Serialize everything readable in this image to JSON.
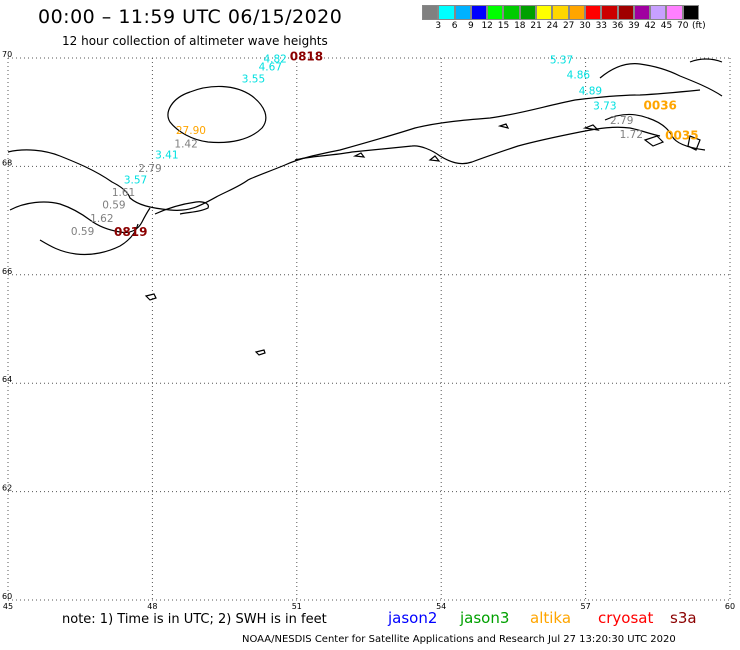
{
  "header": {
    "title": "00:00 – 11:59 UTC 06/15/2020",
    "subtitle": "12 hour collection of altimeter wave heights"
  },
  "colorbar": {
    "colors": [
      "#808080",
      "#00ffff",
      "#00b2ff",
      "#0000ff",
      "#00ff00",
      "#00cc00",
      "#00a000",
      "#ffff00",
      "#ffd700",
      "#ffa500",
      "#ff0000",
      "#cc0000",
      "#a00000",
      "#a000a0",
      "#c8a0ff",
      "#ff80ff",
      "#000000"
    ],
    "labels": [
      "3",
      "6",
      "9",
      "12",
      "15",
      "18",
      "21",
      "24",
      "27",
      "30",
      "33",
      "36",
      "39",
      "42",
      "45",
      "70"
    ],
    "unit": "(ft)"
  },
  "axes": {
    "lon_ticks": [
      {
        "v": 45,
        "t": "45"
      },
      {
        "v": 48,
        "t": "48"
      },
      {
        "v": 51,
        "t": "51"
      },
      {
        "v": 54,
        "t": "54"
      },
      {
        "v": 57,
        "t": "57"
      },
      {
        "v": 60,
        "t": "60"
      }
    ],
    "lat_ticks": [
      {
        "v": 60,
        "t": "60"
      },
      {
        "v": 62,
        "t": "62"
      },
      {
        "v": 64,
        "t": "64"
      },
      {
        "v": 66,
        "t": "66"
      },
      {
        "v": 68,
        "t": "68"
      },
      {
        "v": 70,
        "t": "70"
      }
    ]
  },
  "map_labels": [
    {
      "text": "4.82",
      "lon": 50.55,
      "lat": 69.92,
      "color": "#00e0e0"
    },
    {
      "text": "4.67",
      "lon": 50.45,
      "lat": 69.77,
      "color": "#00e0e0"
    },
    {
      "text": "3.55",
      "lon": 50.1,
      "lat": 69.55,
      "color": "#00e0e0"
    },
    {
      "text": "27.90",
      "lon": 48.8,
      "lat": 68.6,
      "color": "#ffa500"
    },
    {
      "text": "1.42",
      "lon": 48.7,
      "lat": 68.35,
      "color": "#808080"
    },
    {
      "text": "3.41",
      "lon": 48.3,
      "lat": 68.15,
      "color": "#00e0e0"
    },
    {
      "text": "2.79",
      "lon": 47.95,
      "lat": 67.9,
      "color": "#808080"
    },
    {
      "text": "3.57",
      "lon": 47.65,
      "lat": 67.68,
      "color": "#00e0e0"
    },
    {
      "text": "1.61",
      "lon": 47.4,
      "lat": 67.45,
      "color": "#808080"
    },
    {
      "text": "0.59",
      "lon": 47.2,
      "lat": 67.22,
      "color": "#808080"
    },
    {
      "text": "1.62",
      "lon": 46.95,
      "lat": 66.97,
      "color": "#808080"
    },
    {
      "text": "0.59",
      "lon": 46.55,
      "lat": 66.73,
      "color": "#808080"
    },
    {
      "text": "5.37",
      "lon": 56.5,
      "lat": 69.9,
      "color": "#00e0e0"
    },
    {
      "text": "4.86",
      "lon": 56.85,
      "lat": 69.62,
      "color": "#00e0e0"
    },
    {
      "text": "4.89",
      "lon": 57.1,
      "lat": 69.33,
      "color": "#00e0e0"
    },
    {
      "text": "3.73",
      "lon": 57.4,
      "lat": 69.05,
      "color": "#00e0e0"
    },
    {
      "text": "2.79",
      "lon": 57.75,
      "lat": 68.78,
      "color": "#808080"
    },
    {
      "text": "1.72",
      "lon": 57.95,
      "lat": 68.52,
      "color": "#808080"
    }
  ],
  "time_labels": [
    {
      "text": "0818",
      "lon": 51.2,
      "lat": 69.95,
      "color": "#8b0000"
    },
    {
      "text": "0819",
      "lon": 47.55,
      "lat": 66.72,
      "color": "#8b0000"
    },
    {
      "text": "0036",
      "lon": 58.55,
      "lat": 69.05,
      "color": "#ffa500"
    },
    {
      "text": "0035",
      "lon": 59.0,
      "lat": 68.5,
      "color": "#ffa500"
    }
  ],
  "footer": {
    "note": "note: 1) Time is in UTC; 2) SWH is in feet",
    "satellites": [
      {
        "name": "jason2",
        "color": "#0000ff"
      },
      {
        "name": "jason3",
        "color": "#00a000"
      },
      {
        "name": "altika",
        "color": "#ffa500"
      },
      {
        "name": "cryosat",
        "color": "#ff0000"
      },
      {
        "name": "s3a",
        "color": "#8b0000"
      }
    ],
    "credit": "NOAA/NESDIS Center for Satellite Applications and Research    Jul 27 13:20:30 UTC 2020"
  }
}
